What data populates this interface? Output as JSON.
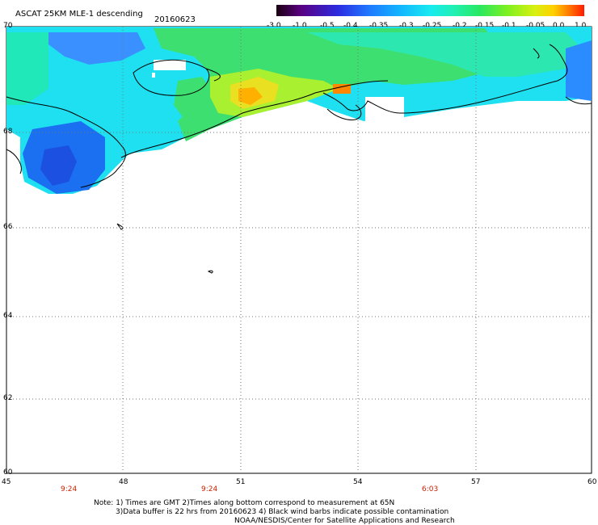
{
  "header": {
    "title": "ASCAT 25KM MLE-1 descending",
    "date": "20160623"
  },
  "colorbar": {
    "labels": [
      "-3.0",
      "-1.0",
      "-0.5",
      "-0.4",
      "-0.35",
      "-0.3",
      "-0.25",
      "-0.2",
      "-0.15",
      "-0.1",
      "-0.05",
      "0.0",
      "1.0"
    ],
    "colors": [
      "#1a0010",
      "#5a0082",
      "#2b2be0",
      "#1f78ff",
      "#12b4ff",
      "#18eaf0",
      "#20f0b0",
      "#28e860",
      "#7ef020",
      "#d8f010",
      "#ffd000",
      "#ff7a00",
      "#ff1a00"
    ]
  },
  "axes": {
    "lat_labels": [
      "70",
      "68",
      "66",
      "64",
      "62",
      "60"
    ],
    "lon_labels": [
      "45",
      "48",
      "51",
      "54",
      "57",
      "60"
    ]
  },
  "times": [
    "9:24",
    "9:24",
    "6:03"
  ],
  "notes": {
    "line1": "Note: 1) Times are GMT 2)Times along bottom correspond to measurement at 65N",
    "line2": "3)Data buffer is 22 hrs from 20160623 4) Black wind barbs indicate possible contamination",
    "line3": "NOAA/NESDIS/Center for Satellite Applications and Research"
  }
}
